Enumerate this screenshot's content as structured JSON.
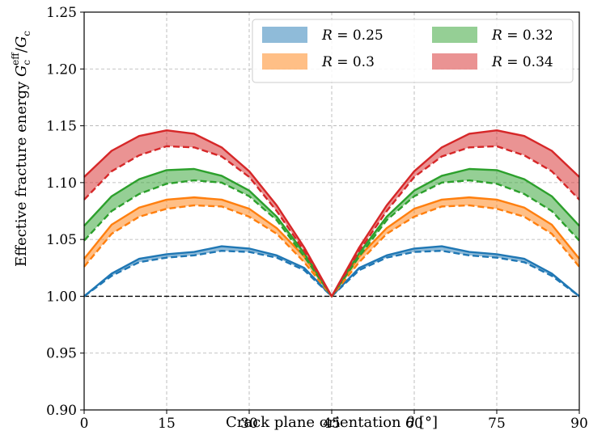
{
  "chart_data": {
    "type": "line",
    "xlabel": "Crack plane orientation θ [°]",
    "ylabel": "Effective fracture energy G_c^eff/G_c",
    "xlim": [
      0,
      90
    ],
    "ylim": [
      0.9,
      1.25
    ],
    "xticks": [
      "0",
      "15",
      "30",
      "45",
      "60",
      "75",
      "90"
    ],
    "yticks": [
      "0.90",
      "0.95",
      "1.00",
      "1.05",
      "1.10",
      "1.15",
      "1.20",
      "1.25"
    ],
    "grid": true,
    "legend_position": "top-right",
    "reference_line": {
      "y": 1.0,
      "style": "dashed",
      "color": "#000000"
    },
    "x": [
      0,
      5,
      10,
      15,
      20,
      25,
      30,
      35,
      40,
      45,
      50,
      55,
      60,
      65,
      70,
      75,
      80,
      85,
      90
    ],
    "series": [
      {
        "name": "R = 0.25",
        "color": "#1f77b4",
        "upper": [
          1.0,
          1.02,
          1.033,
          1.037,
          1.039,
          1.044,
          1.042,
          1.036,
          1.025,
          1.0,
          1.025,
          1.036,
          1.042,
          1.044,
          1.039,
          1.037,
          1.033,
          1.02,
          1.0
        ],
        "lower": [
          1.0,
          1.018,
          1.03,
          1.034,
          1.036,
          1.04,
          1.039,
          1.034,
          1.023,
          1.0,
          1.023,
          1.034,
          1.039,
          1.04,
          1.036,
          1.034,
          1.03,
          1.018,
          1.0
        ]
      },
      {
        "name": "R = 0.3",
        "color": "#ff7f0e",
        "upper": [
          1.033,
          1.063,
          1.078,
          1.085,
          1.087,
          1.085,
          1.077,
          1.06,
          1.035,
          1.0,
          1.035,
          1.06,
          1.077,
          1.085,
          1.087,
          1.085,
          1.078,
          1.063,
          1.033
        ],
        "lower": [
          1.026,
          1.055,
          1.07,
          1.077,
          1.08,
          1.079,
          1.07,
          1.055,
          1.03,
          1.0,
          1.03,
          1.055,
          1.07,
          1.079,
          1.08,
          1.077,
          1.07,
          1.055,
          1.026
        ]
      },
      {
        "name": "R = 0.32",
        "color": "#2ca02c",
        "upper": [
          1.062,
          1.088,
          1.103,
          1.111,
          1.112,
          1.106,
          1.093,
          1.07,
          1.038,
          1.0,
          1.038,
          1.07,
          1.093,
          1.106,
          1.112,
          1.111,
          1.103,
          1.088,
          1.062
        ],
        "lower": [
          1.049,
          1.075,
          1.09,
          1.099,
          1.102,
          1.1,
          1.088,
          1.067,
          1.035,
          1.0,
          1.035,
          1.067,
          1.088,
          1.1,
          1.102,
          1.099,
          1.09,
          1.075,
          1.049
        ]
      },
      {
        "name": "R = 0.34",
        "color": "#d62728",
        "upper": [
          1.105,
          1.128,
          1.141,
          1.146,
          1.143,
          1.131,
          1.11,
          1.08,
          1.043,
          1.0,
          1.043,
          1.08,
          1.11,
          1.131,
          1.143,
          1.146,
          1.141,
          1.128,
          1.105
        ],
        "lower": [
          1.085,
          1.11,
          1.124,
          1.132,
          1.131,
          1.123,
          1.105,
          1.075,
          1.04,
          1.0,
          1.04,
          1.075,
          1.105,
          1.123,
          1.131,
          1.132,
          1.124,
          1.11,
          1.085
        ]
      }
    ]
  },
  "legend": {
    "items": [
      {
        "symbol": "R",
        "value": " = 0.25",
        "color": "#1f77b4"
      },
      {
        "symbol": "R",
        "value": " = 0.3",
        "color": "#ff7f0e"
      },
      {
        "symbol": "R",
        "value": " = 0.32",
        "color": "#2ca02c"
      },
      {
        "symbol": "R",
        "value": " = 0.34",
        "color": "#d62728"
      }
    ]
  },
  "axes_text": {
    "xlabel_main": "Crack plane orientation ",
    "xlabel_symbol": "θ",
    "xlabel_unit": " [°]",
    "ylabel_main": "Effective fracture energy ",
    "ylabel_G": "G",
    "ylabel_sub": "c",
    "ylabel_sup": "eff",
    "ylabel_slash": "/",
    "ylabel_G2": "G",
    "ylabel_sub2": "c"
  }
}
